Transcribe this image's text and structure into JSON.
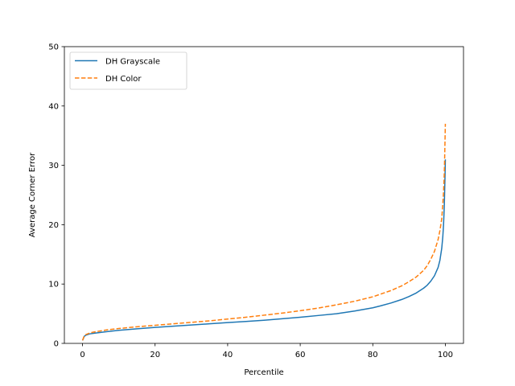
{
  "chart_data": {
    "type": "line",
    "title": "",
    "xlabel": "Percentile",
    "ylabel": "Average Corner Error",
    "xlim": [
      -5,
      105
    ],
    "ylim": [
      0,
      50
    ],
    "x_ticks": [
      0,
      20,
      40,
      60,
      80,
      100
    ],
    "y_ticks": [
      0,
      10,
      20,
      30,
      40,
      50
    ],
    "grid": false,
    "legend_position": "upper-left",
    "series": [
      {
        "name": "DH Grayscale",
        "color": "#1f77b4",
        "line_style": "solid",
        "x": [
          0,
          0.5,
          1,
          2,
          3,
          5,
          7,
          10,
          15,
          20,
          25,
          30,
          35,
          40,
          45,
          50,
          55,
          60,
          65,
          70,
          75,
          80,
          82,
          85,
          88,
          90,
          92,
          94,
          95,
          96,
          97,
          98,
          98.5,
          99,
          99.3,
          99.5,
          99.7,
          99.8,
          99.9,
          100
        ],
        "y": [
          0.5,
          1.2,
          1.4,
          1.6,
          1.7,
          1.85,
          2.0,
          2.2,
          2.45,
          2.7,
          2.9,
          3.1,
          3.3,
          3.5,
          3.7,
          3.9,
          4.15,
          4.4,
          4.7,
          5.0,
          5.45,
          6.0,
          6.3,
          6.8,
          7.4,
          7.9,
          8.5,
          9.3,
          9.8,
          10.5,
          11.4,
          12.8,
          14.0,
          16.0,
          18.0,
          20.0,
          23.0,
          25.5,
          28.0,
          31.0
        ]
      },
      {
        "name": "DH Color",
        "color": "#ff7f0e",
        "line_style": "dashed",
        "x": [
          0,
          0.5,
          1,
          2,
          3,
          5,
          7,
          10,
          15,
          20,
          25,
          30,
          35,
          40,
          45,
          50,
          55,
          60,
          65,
          70,
          75,
          80,
          85,
          88,
          90,
          92,
          94,
          95,
          96,
          97,
          98,
          98.5,
          99,
          99.3,
          99.5,
          99.7,
          99.8,
          99.9,
          100
        ],
        "y": [
          0.5,
          1.3,
          1.5,
          1.75,
          1.9,
          2.1,
          2.3,
          2.5,
          2.8,
          3.05,
          3.3,
          3.55,
          3.8,
          4.1,
          4.4,
          4.75,
          5.1,
          5.5,
          5.95,
          6.5,
          7.1,
          7.85,
          8.9,
          9.7,
          10.4,
          11.2,
          12.3,
          13.1,
          14.2,
          15.5,
          17.5,
          19.0,
          21.0,
          23.5,
          25.5,
          28.5,
          31.0,
          34.0,
          37.0
        ]
      }
    ]
  }
}
